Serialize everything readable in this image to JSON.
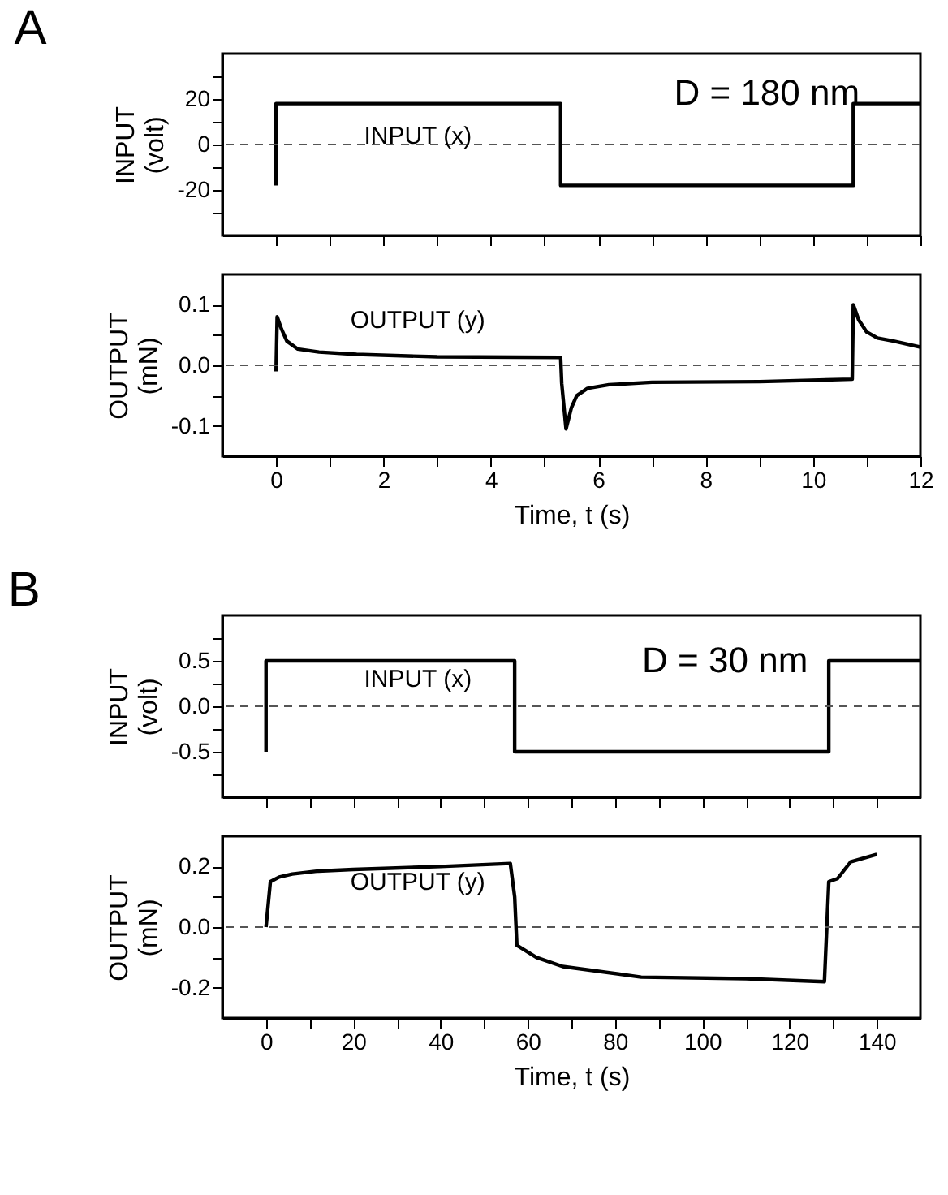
{
  "chart_data": [
    {
      "type": "line",
      "title": "A",
      "ylabel": "INPUT\n(volt)",
      "annotations": [
        "INPUT (x)",
        "D = 180 nm"
      ],
      "tick_labels": "y",
      "xlim": [
        -1,
        12
      ],
      "xticks": [
        0,
        {
          "value": 1,
          "label": null
        },
        2,
        {
          "value": 3,
          "label": null
        },
        4,
        {
          "value": 5,
          "label": null
        },
        6,
        {
          "value": 7,
          "label": null
        },
        8,
        {
          "value": 9,
          "label": null
        },
        10,
        {
          "value": 11,
          "label": null
        },
        12
      ],
      "ylim": [
        -40,
        40
      ],
      "yticks": [
        -20,
        {
          "value": -30,
          "label": null
        },
        {
          "value": -10,
          "label": null
        },
        0,
        {
          "value": 10,
          "label": null
        },
        20,
        {
          "value": 30,
          "label": null
        }
      ],
      "ref_lines": [
        {
          "axis": "y",
          "value": 0,
          "line_style": "dashed",
          "color": "#555555"
        }
      ],
      "series": [
        {
          "color": "#000000",
          "x": [
            0,
            0,
            5.3,
            5.3,
            10.75,
            10.75,
            12
          ],
          "values": [
            -18,
            18,
            18,
            -18,
            -18,
            18,
            18
          ]
        }
      ]
    },
    {
      "type": "line",
      "xlabel": "Time, t (s)",
      "ylabel": "OUTPUT\n(mN)",
      "annotations": [
        "OUTPUT (y)"
      ],
      "xlim": [
        -1,
        12
      ],
      "xticks": [
        0,
        {
          "value": 1,
          "label": null
        },
        2,
        {
          "value": 3,
          "label": null
        },
        4,
        {
          "value": 5,
          "label": null
        },
        6,
        {
          "value": 7,
          "label": null
        },
        8,
        {
          "value": 9,
          "label": null
        },
        10,
        {
          "value": 11,
          "label": null
        },
        12
      ],
      "ylim": [
        -0.15,
        0.15
      ],
      "yticks": [
        -0.1,
        {
          "value": -0.05,
          "label": null
        },
        {
          "value": 0,
          "label": "0.0"
        },
        {
          "value": 0.05,
          "label": null
        },
        0.1
      ],
      "ref_lines": [
        {
          "axis": "y",
          "value": 0,
          "line_style": "dashed",
          "color": "#555555"
        }
      ],
      "series": [
        {
          "color": "#000000",
          "x": [
            0,
            0.02,
            0.1,
            0.2,
            0.4,
            0.8,
            1.5,
            3,
            5.3,
            5.32,
            5.4,
            5.5,
            5.6,
            5.8,
            6.2,
            7,
            9,
            10.73,
            10.75,
            10.85,
            11,
            11.2,
            11.5,
            12
          ],
          "values": [
            -0.01,
            0.08,
            0.06,
            0.04,
            0.027,
            0.022,
            0.018,
            0.014,
            0.013,
            -0.03,
            -0.105,
            -0.07,
            -0.05,
            -0.038,
            -0.032,
            -0.028,
            -0.027,
            -0.023,
            0.1,
            0.075,
            0.055,
            0.045,
            0.04,
            0.03
          ]
        }
      ]
    },
    {
      "type": "line",
      "title": "B",
      "ylabel": "INPUT\n(volt)",
      "annotations": [
        "INPUT (x)",
        "D = 30 nm"
      ],
      "tick_labels": "y",
      "xlim": [
        -10,
        150
      ],
      "xticks": [
        0,
        {
          "value": 10,
          "label": null
        },
        20,
        {
          "value": 30,
          "label": null
        },
        40,
        {
          "value": 50,
          "label": null
        },
        60,
        {
          "value": 70,
          "label": null
        },
        80,
        {
          "value": 90,
          "label": null
        },
        100,
        {
          "value": 110,
          "label": null
        },
        120,
        {
          "value": 130,
          "label": null
        },
        140
      ],
      "ylim": [
        -1,
        1
      ],
      "yticks": [
        -0.5,
        {
          "value": -0.75,
          "label": null
        },
        {
          "value": -0.25,
          "label": null
        },
        {
          "value": 0,
          "label": "0.0"
        },
        {
          "value": 0.25,
          "label": null
        },
        0.5,
        {
          "value": 0.75,
          "label": null
        }
      ],
      "ref_lines": [
        {
          "axis": "y",
          "value": 0,
          "line_style": "dashed",
          "color": "#555555"
        }
      ],
      "series": [
        {
          "color": "#000000",
          "x": [
            0,
            0,
            57,
            57,
            129,
            129,
            150
          ],
          "values": [
            -0.5,
            0.5,
            0.5,
            -0.5,
            -0.5,
            0.5,
            0.5
          ]
        }
      ]
    },
    {
      "type": "line",
      "xlabel": "Time, t (s)",
      "ylabel": "OUTPUT\n(mN)",
      "annotations": [
        "OUTPUT (y)"
      ],
      "xlim": [
        -10,
        150
      ],
      "xticks": [
        0,
        {
          "value": 10,
          "label": null
        },
        20,
        {
          "value": 30,
          "label": null
        },
        40,
        {
          "value": 50,
          "label": null
        },
        60,
        {
          "value": 70,
          "label": null
        },
        80,
        {
          "value": 90,
          "label": null
        },
        100,
        {
          "value": 110,
          "label": null
        },
        120,
        {
          "value": 130,
          "label": null
        },
        140
      ],
      "ylim": [
        -0.3,
        0.3
      ],
      "yticks": [
        -0.2,
        {
          "value": -0.1,
          "label": null
        },
        {
          "value": 0,
          "label": "0.0"
        },
        {
          "value": 0.1,
          "label": null
        },
        0.2
      ],
      "ref_lines": [
        {
          "axis": "y",
          "value": 0,
          "line_style": "dashed",
          "color": "#555555"
        }
      ],
      "series": [
        {
          "color": "#000000",
          "x": [
            0,
            1,
            3,
            6,
            12,
            20,
            40,
            56,
            57,
            57.5,
            62,
            68,
            86,
            110,
            128,
            129,
            131,
            134,
            140
          ],
          "values": [
            0,
            0.15,
            0.165,
            0.175,
            0.185,
            0.19,
            0.2,
            0.21,
            0.1,
            -0.06,
            -0.1,
            -0.13,
            -0.165,
            -0.17,
            -0.18,
            0.15,
            0.16,
            0.215,
            0.24
          ]
        }
      ]
    }
  ]
}
